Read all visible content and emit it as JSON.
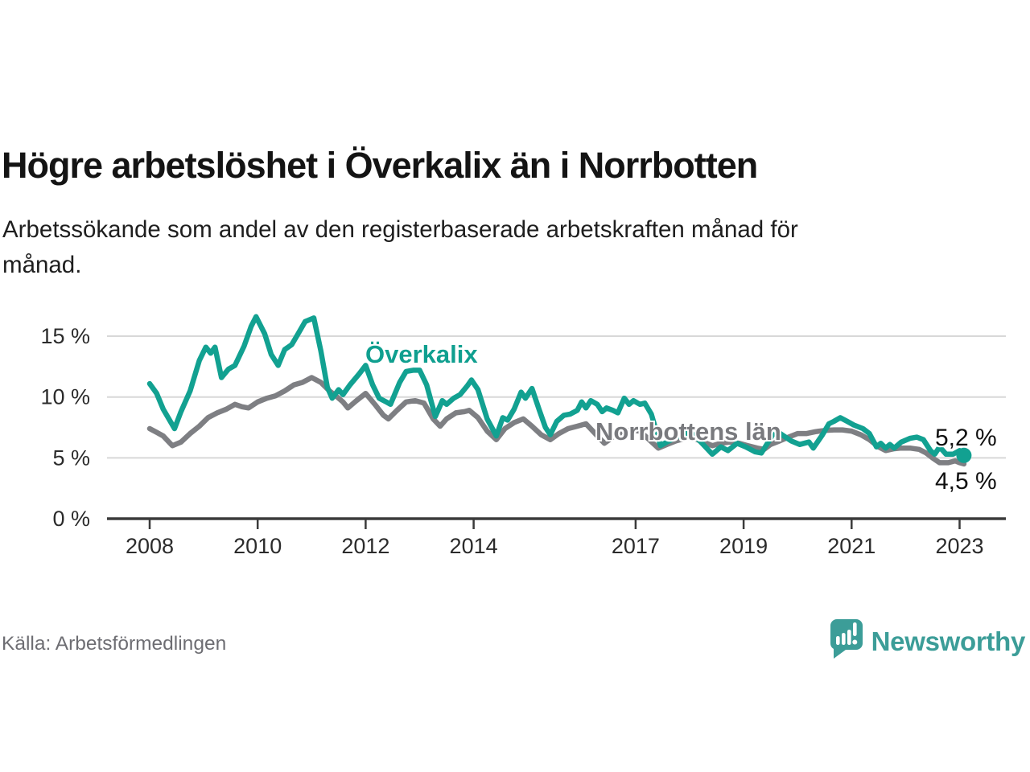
{
  "header": {
    "title": "Högre arbetslöshet i Överkalix än i Norrbotten",
    "subtitle": "Arbetssökande som andel av den registerbaserade arbetskraften månad för månad."
  },
  "footer": {
    "source_label": "Källa: Arbetsförmedlingen",
    "brand_name": "Newsworthy"
  },
  "colors": {
    "accent_teal": "#12a191",
    "line_gray": "#7e7f83",
    "grid": "#d8d8d8",
    "axis": "#3b3b3b",
    "brand_teal": "#3c9d98"
  },
  "chart_data": {
    "type": "line",
    "title": "Högre arbetslöshet i Överkalix än i Norrbotten",
    "subtitle": "Arbetssökande som andel av den registerbaserade arbetskraften månad för månad.",
    "unit": "%",
    "grid": "horizontal",
    "legend_position": "direct-labels-on-lines",
    "xlim": [
      2007.2,
      2023.9
    ],
    "ylim": [
      0,
      17
    ],
    "x_ticks": [
      {
        "label": "2008",
        "year": 2008
      },
      {
        "label": "2010",
        "year": 2010
      },
      {
        "label": "2012",
        "year": 2012
      },
      {
        "label": "2014",
        "year": 2014
      },
      {
        "label": "2017",
        "year": 2017
      },
      {
        "label": "2019",
        "year": 2019
      },
      {
        "label": "2021",
        "year": 2021
      },
      {
        "label": "2023",
        "year": 2023
      }
    ],
    "y_ticks": [
      {
        "label": "0 %",
        "value": 0
      },
      {
        "label": "5 %",
        "value": 5
      },
      {
        "label": "10 %",
        "value": 10
      },
      {
        "label": "15 %",
        "value": 15
      }
    ],
    "series": [
      {
        "name": "Överkalix",
        "color": "#12a191",
        "end_label": "5,2 %",
        "end_value": 5.2,
        "end_dot": true,
        "points": [
          [
            2008.0,
            11.1
          ],
          [
            2008.13,
            10.3
          ],
          [
            2008.25,
            9.0
          ],
          [
            2008.46,
            7.4
          ],
          [
            2008.58,
            8.8
          ],
          [
            2008.75,
            10.5
          ],
          [
            2008.92,
            13.0
          ],
          [
            2009.04,
            14.1
          ],
          [
            2009.13,
            13.6
          ],
          [
            2009.21,
            14.1
          ],
          [
            2009.33,
            11.6
          ],
          [
            2009.46,
            12.3
          ],
          [
            2009.58,
            12.6
          ],
          [
            2009.75,
            14.2
          ],
          [
            2009.88,
            15.8
          ],
          [
            2009.97,
            16.6
          ],
          [
            2010.13,
            15.2
          ],
          [
            2010.25,
            13.5
          ],
          [
            2010.38,
            12.6
          ],
          [
            2010.5,
            13.9
          ],
          [
            2010.63,
            14.3
          ],
          [
            2010.75,
            15.2
          ],
          [
            2010.88,
            16.2
          ],
          [
            2011.04,
            16.5
          ],
          [
            2011.17,
            13.8
          ],
          [
            2011.29,
            10.8
          ],
          [
            2011.38,
            9.9
          ],
          [
            2011.5,
            10.6
          ],
          [
            2011.58,
            10.2
          ],
          [
            2011.71,
            11.0
          ],
          [
            2011.88,
            11.9
          ],
          [
            2012.0,
            12.6
          ],
          [
            2012.13,
            11.0
          ],
          [
            2012.25,
            9.9
          ],
          [
            2012.38,
            9.6
          ],
          [
            2012.46,
            9.4
          ],
          [
            2012.63,
            11.2
          ],
          [
            2012.75,
            12.1
          ],
          [
            2012.88,
            12.2
          ],
          [
            2013.0,
            12.2
          ],
          [
            2013.13,
            11.0
          ],
          [
            2013.29,
            8.4
          ],
          [
            2013.42,
            9.7
          ],
          [
            2013.5,
            9.4
          ],
          [
            2013.63,
            9.9
          ],
          [
            2013.75,
            10.2
          ],
          [
            2013.88,
            10.9
          ],
          [
            2013.96,
            11.4
          ],
          [
            2014.08,
            10.6
          ],
          [
            2014.25,
            8.2
          ],
          [
            2014.42,
            6.8
          ],
          [
            2014.54,
            8.3
          ],
          [
            2014.63,
            8.1
          ],
          [
            2014.75,
            9.0
          ],
          [
            2014.88,
            10.4
          ],
          [
            2014.96,
            9.9
          ],
          [
            2015.08,
            10.7
          ],
          [
            2015.21,
            9.0
          ],
          [
            2015.33,
            7.5
          ],
          [
            2015.42,
            6.9
          ],
          [
            2015.54,
            8.0
          ],
          [
            2015.67,
            8.5
          ],
          [
            2015.79,
            8.6
          ],
          [
            2015.92,
            8.9
          ],
          [
            2016.0,
            9.6
          ],
          [
            2016.08,
            9.1
          ],
          [
            2016.17,
            9.7
          ],
          [
            2016.29,
            9.4
          ],
          [
            2016.38,
            8.8
          ],
          [
            2016.46,
            9.1
          ],
          [
            2016.58,
            8.9
          ],
          [
            2016.67,
            8.7
          ],
          [
            2016.79,
            9.9
          ],
          [
            2016.88,
            9.4
          ],
          [
            2016.96,
            9.7
          ],
          [
            2017.08,
            9.4
          ],
          [
            2017.17,
            9.5
          ],
          [
            2017.29,
            8.6
          ],
          [
            2017.46,
            6.0
          ],
          [
            2017.58,
            6.3
          ],
          [
            2017.75,
            6.7
          ],
          [
            2017.92,
            7.0
          ],
          [
            2018.08,
            6.9
          ],
          [
            2018.25,
            6.1
          ],
          [
            2018.42,
            5.3
          ],
          [
            2018.58,
            5.9
          ],
          [
            2018.71,
            5.6
          ],
          [
            2018.88,
            6.2
          ],
          [
            2019.04,
            5.9
          ],
          [
            2019.21,
            5.5
          ],
          [
            2019.33,
            5.4
          ],
          [
            2019.5,
            6.6
          ],
          [
            2019.58,
            7.3
          ],
          [
            2019.71,
            6.9
          ],
          [
            2019.88,
            6.4
          ],
          [
            2020.04,
            6.1
          ],
          [
            2020.21,
            6.3
          ],
          [
            2020.29,
            5.8
          ],
          [
            2020.46,
            6.9
          ],
          [
            2020.58,
            7.8
          ],
          [
            2020.67,
            8.0
          ],
          [
            2020.79,
            8.3
          ],
          [
            2020.92,
            8.0
          ],
          [
            2021.04,
            7.7
          ],
          [
            2021.21,
            7.4
          ],
          [
            2021.33,
            7.0
          ],
          [
            2021.46,
            5.9
          ],
          [
            2021.54,
            6.2
          ],
          [
            2021.63,
            5.8
          ],
          [
            2021.71,
            6.1
          ],
          [
            2021.79,
            5.8
          ],
          [
            2021.92,
            6.3
          ],
          [
            2022.08,
            6.6
          ],
          [
            2022.21,
            6.7
          ],
          [
            2022.33,
            6.5
          ],
          [
            2022.46,
            5.6
          ],
          [
            2022.54,
            5.3
          ],
          [
            2022.63,
            5.9
          ],
          [
            2022.75,
            5.3
          ],
          [
            2022.88,
            5.3
          ],
          [
            2023.0,
            5.6
          ],
          [
            2023.08,
            5.2
          ]
        ]
      },
      {
        "name": "Norrbottens län",
        "color": "#7e7f83",
        "end_label": "4,5 %",
        "end_value": 4.5,
        "end_dot": false,
        "points": [
          [
            2008.0,
            7.4
          ],
          [
            2008.13,
            7.1
          ],
          [
            2008.25,
            6.8
          ],
          [
            2008.42,
            6.0
          ],
          [
            2008.58,
            6.3
          ],
          [
            2008.75,
            7.0
          ],
          [
            2008.92,
            7.6
          ],
          [
            2009.08,
            8.3
          ],
          [
            2009.25,
            8.7
          ],
          [
            2009.42,
            9.0
          ],
          [
            2009.58,
            9.4
          ],
          [
            2009.71,
            9.2
          ],
          [
            2009.83,
            9.1
          ],
          [
            2010.0,
            9.6
          ],
          [
            2010.17,
            9.9
          ],
          [
            2010.33,
            10.1
          ],
          [
            2010.5,
            10.5
          ],
          [
            2010.67,
            11.0
          ],
          [
            2010.83,
            11.2
          ],
          [
            2011.0,
            11.6
          ],
          [
            2011.17,
            11.2
          ],
          [
            2011.33,
            10.5
          ],
          [
            2011.42,
            10.2
          ],
          [
            2011.58,
            9.6
          ],
          [
            2011.67,
            9.1
          ],
          [
            2011.83,
            9.7
          ],
          [
            2012.0,
            10.3
          ],
          [
            2012.17,
            9.4
          ],
          [
            2012.33,
            8.5
          ],
          [
            2012.42,
            8.2
          ],
          [
            2012.58,
            8.9
          ],
          [
            2012.75,
            9.6
          ],
          [
            2012.92,
            9.7
          ],
          [
            2013.08,
            9.5
          ],
          [
            2013.25,
            8.2
          ],
          [
            2013.38,
            7.6
          ],
          [
            2013.5,
            8.2
          ],
          [
            2013.67,
            8.7
          ],
          [
            2013.83,
            8.8
          ],
          [
            2013.92,
            8.9
          ],
          [
            2014.08,
            8.3
          ],
          [
            2014.25,
            7.2
          ],
          [
            2014.42,
            6.5
          ],
          [
            2014.58,
            7.4
          ],
          [
            2014.75,
            7.9
          ],
          [
            2014.92,
            8.2
          ],
          [
            2015.08,
            7.6
          ],
          [
            2015.25,
            6.9
          ],
          [
            2015.42,
            6.5
          ],
          [
            2015.58,
            7.0
          ],
          [
            2015.75,
            7.4
          ],
          [
            2015.92,
            7.6
          ],
          [
            2016.08,
            7.8
          ],
          [
            2016.25,
            7.0
          ],
          [
            2016.42,
            6.2
          ],
          [
            2016.58,
            6.7
          ],
          [
            2016.75,
            7.1
          ],
          [
            2016.92,
            7.3
          ],
          [
            2017.08,
            7.2
          ],
          [
            2017.25,
            6.5
          ],
          [
            2017.42,
            5.8
          ],
          [
            2017.58,
            6.1
          ],
          [
            2017.75,
            6.4
          ],
          [
            2017.92,
            6.6
          ],
          [
            2018.08,
            6.6
          ],
          [
            2018.25,
            6.3
          ],
          [
            2018.42,
            6.0
          ],
          [
            2018.58,
            6.2
          ],
          [
            2018.75,
            6.3
          ],
          [
            2018.92,
            6.2
          ],
          [
            2019.08,
            6.0
          ],
          [
            2019.25,
            5.8
          ],
          [
            2019.38,
            5.7
          ],
          [
            2019.5,
            6.1
          ],
          [
            2019.67,
            6.4
          ],
          [
            2019.83,
            6.7
          ],
          [
            2020.0,
            7.0
          ],
          [
            2020.17,
            7.0
          ],
          [
            2020.33,
            7.15
          ],
          [
            2020.5,
            7.25
          ],
          [
            2020.67,
            7.3
          ],
          [
            2020.83,
            7.3
          ],
          [
            2021.0,
            7.2
          ],
          [
            2021.17,
            6.9
          ],
          [
            2021.33,
            6.5
          ],
          [
            2021.5,
            5.9
          ],
          [
            2021.63,
            5.6
          ],
          [
            2021.79,
            5.75
          ],
          [
            2021.92,
            5.8
          ],
          [
            2022.08,
            5.8
          ],
          [
            2022.25,
            5.7
          ],
          [
            2022.38,
            5.4
          ],
          [
            2022.5,
            5.0
          ],
          [
            2022.63,
            4.6
          ],
          [
            2022.79,
            4.6
          ],
          [
            2022.92,
            4.75
          ],
          [
            2023.0,
            4.6
          ],
          [
            2023.08,
            4.5
          ]
        ]
      }
    ]
  }
}
